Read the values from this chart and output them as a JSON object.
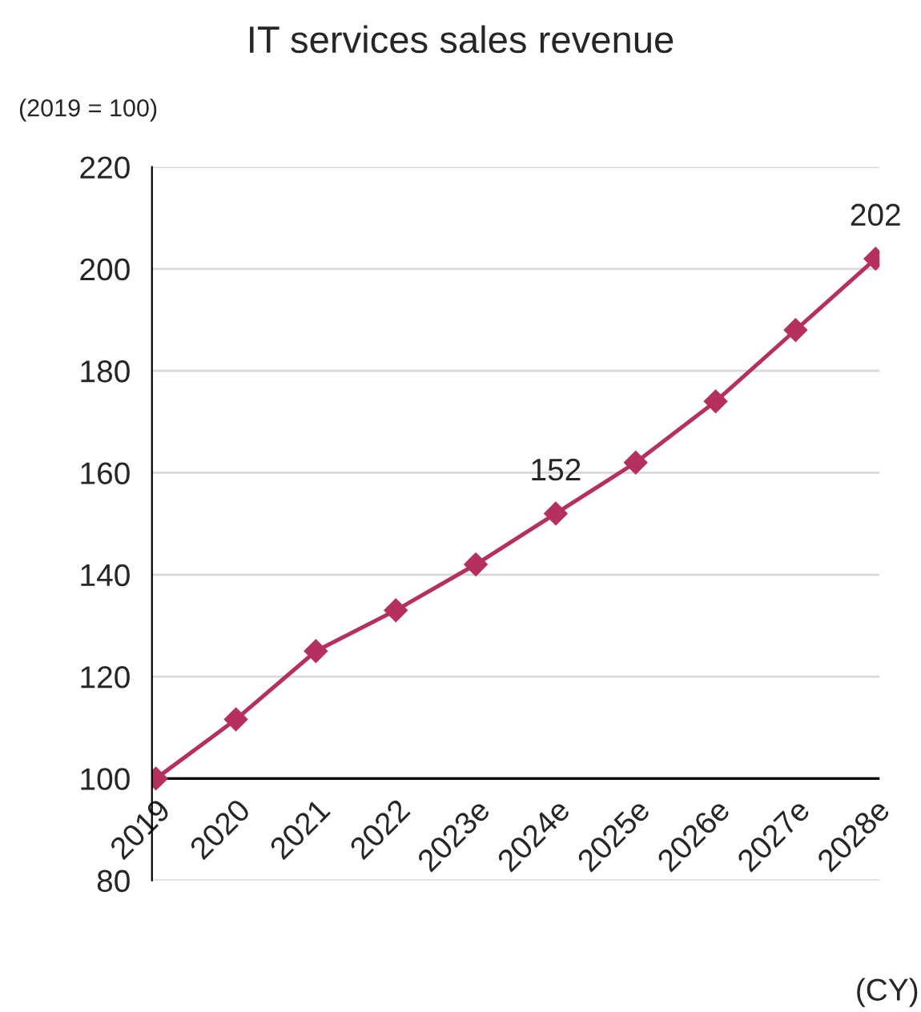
{
  "chart_data": {
    "type": "line",
    "title": "IT services sales revenue",
    "categories": [
      "2019",
      "2020",
      "2021",
      "2022",
      "2023e",
      "2024e",
      "2025e",
      "2026e",
      "2027e",
      "2028e"
    ],
    "series": [
      {
        "color": "#b5305f",
        "values": [
          100,
          111.6,
          125,
          133,
          142,
          152,
          162,
          174,
          188,
          202
        ],
        "value_labels": [
          null,
          null,
          null,
          null,
          null,
          "152",
          null,
          null,
          null,
          "202"
        ]
      }
    ],
    "ylim": [
      80,
      220
    ],
    "yticks": [
      80,
      100,
      120,
      140,
      160,
      180,
      200,
      220
    ],
    "ref_lines": [
      {
        "axis": "y",
        "value": 100,
        "color": "#000000",
        "line_style": "solid"
      }
    ],
    "grid": "y",
    "marker": "diamond",
    "line_style": "solid",
    "legend": false,
    "annotations": [
      "(2019 = 100)",
      "(CY)"
    ]
  }
}
